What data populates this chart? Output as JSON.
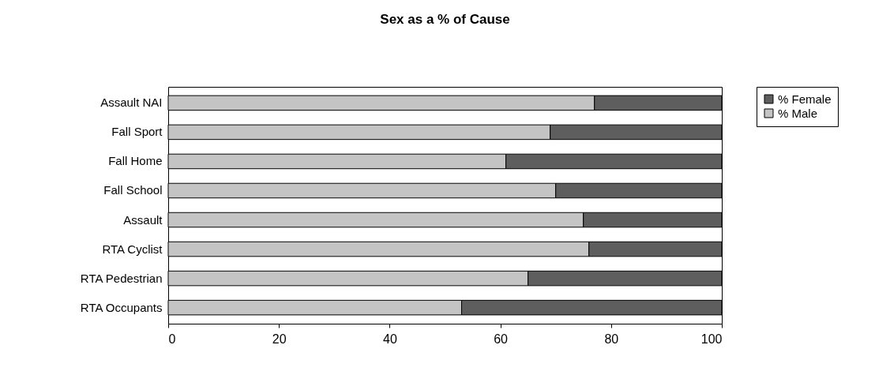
{
  "chart_data": {
    "type": "bar",
    "title": "Sex as a % of Cause",
    "orientation": "horizontal",
    "stacked": true,
    "categories": [
      "Assault NAI",
      "Fall Sport",
      "Fall Home",
      "Fall School",
      "Assault",
      "RTA Cyclist",
      "RTA Pedestrian",
      "RTA Occupants"
    ],
    "series": [
      {
        "name": "% Male",
        "color": "#c4c4c4",
        "values": [
          77,
          69,
          61,
          70,
          75,
          76,
          65,
          53
        ]
      },
      {
        "name": "% Female",
        "color": "#5e5e5e",
        "values": [
          23,
          31,
          39,
          30,
          25,
          24,
          35,
          47
        ]
      }
    ],
    "xlim": [
      0,
      100
    ],
    "xticks": [
      0,
      20,
      40,
      60,
      80,
      100
    ],
    "grid": false,
    "legend": "right"
  }
}
